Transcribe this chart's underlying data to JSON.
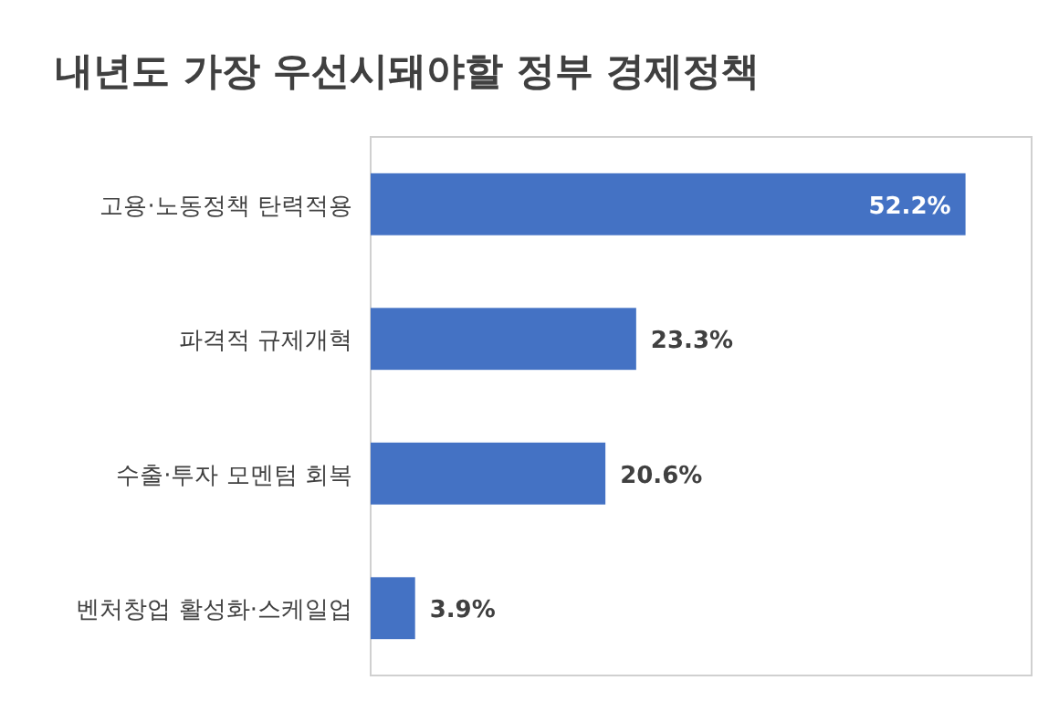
{
  "chart_data": {
    "type": "bar",
    "orientation": "horizontal",
    "title": "내년도 가장 우선시돼야할 정부 경제정책",
    "categories": [
      "고용·노동정책 탄력적용",
      "파격적 규제개혁",
      "수출·투자 모멘텀 회복",
      "벤처창업 활성화·스케일업"
    ],
    "values": [
      52.2,
      23.3,
      20.6,
      3.9
    ],
    "value_labels": [
      "52.2%",
      "23.3%",
      "20.6%",
      "3.9%"
    ],
    "color": "#4472c4"
  }
}
